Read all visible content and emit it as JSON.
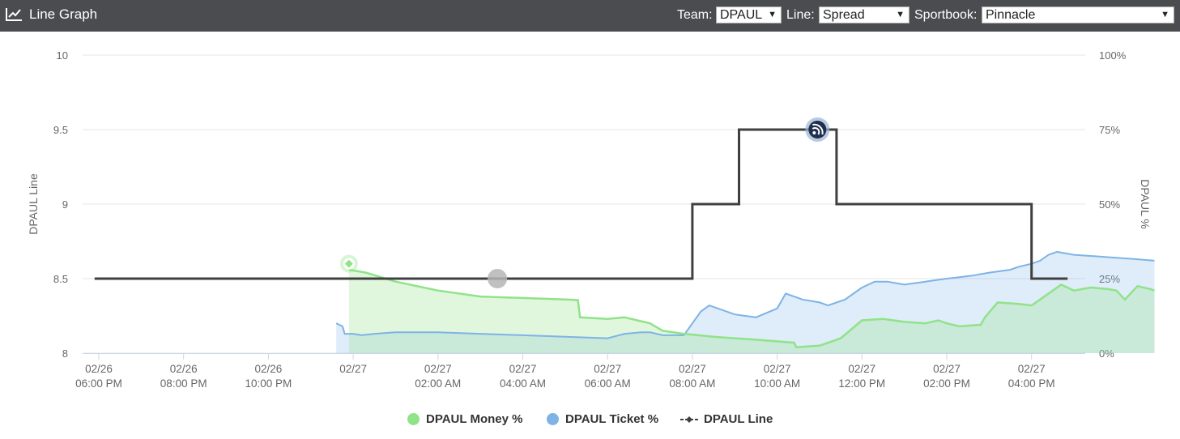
{
  "header": {
    "title": "Line Graph",
    "icon": "line-chart-icon",
    "team_label": "Team:",
    "team_value": "DPAUL",
    "line_label": "Line:",
    "line_value": "Spread",
    "sportsbook_label": "Sportbook:",
    "sportsbook_value": "Pinnacle"
  },
  "legend": {
    "money": "DPAUL Money %",
    "ticket": "DPAUL Ticket %",
    "line": "DPAUL Line"
  },
  "colors": {
    "money": "#90e388",
    "ticket": "#7eb3e6",
    "line": "#404040",
    "header_bg": "#4a4c50"
  },
  "chart_data": {
    "type": "line",
    "title": "",
    "ylabel": "DPAUL Line",
    "y2label": "DPAUL %",
    "ylim": [
      8,
      10
    ],
    "y_ticks": [
      "8",
      "8.5",
      "9",
      "9.5",
      "10"
    ],
    "y2lim": [
      0,
      100
    ],
    "y2_ticks": [
      "0%",
      "25%",
      "50%",
      "75%",
      "100%"
    ],
    "x_ticks": [
      {
        "date": "02/26",
        "time": "06:00 PM",
        "h": 0
      },
      {
        "date": "02/26",
        "time": "08:00 PM",
        "h": 2
      },
      {
        "date": "02/26",
        "time": "10:00 PM",
        "h": 4
      },
      {
        "date": "02/27",
        "time": "",
        "h": 6
      },
      {
        "date": "02/27",
        "time": "02:00 AM",
        "h": 8
      },
      {
        "date": "02/27",
        "time": "04:00 AM",
        "h": 10
      },
      {
        "date": "02/27",
        "time": "06:00 AM",
        "h": 12
      },
      {
        "date": "02/27",
        "time": "08:00 AM",
        "h": 14
      },
      {
        "date": "02/27",
        "time": "10:00 AM",
        "h": 16
      },
      {
        "date": "02/27",
        "time": "12:00 PM",
        "h": 18
      },
      {
        "date": "02/27",
        "time": "02:00 PM",
        "h": 20
      },
      {
        "date": "02/27",
        "time": "04:00 PM",
        "h": 22
      }
    ],
    "series": [
      {
        "name": "DPAUL Line",
        "axis": "left",
        "step": true,
        "points": [
          [
            -0.1,
            8.5
          ],
          [
            14.0,
            8.5
          ],
          [
            14.0,
            9.0
          ],
          [
            15.1,
            9.0
          ],
          [
            15.1,
            9.5
          ],
          [
            17.4,
            9.5
          ],
          [
            17.4,
            9.0
          ],
          [
            22.0,
            9.0
          ],
          [
            22.0,
            8.5
          ],
          [
            22.85,
            8.5
          ]
        ]
      },
      {
        "name": "DPAUL Money %",
        "axis": "right",
        "points": [
          [
            5.9,
            28
          ],
          [
            6.3,
            27
          ],
          [
            7.0,
            24
          ],
          [
            8.0,
            21
          ],
          [
            9.0,
            19
          ],
          [
            10.0,
            18.5
          ],
          [
            11.0,
            18
          ],
          [
            11.3,
            17.8
          ],
          [
            11.35,
            12
          ],
          [
            12.0,
            11.5
          ],
          [
            12.4,
            12
          ],
          [
            13.0,
            10
          ],
          [
            13.3,
            7.5
          ],
          [
            13.8,
            6.5
          ],
          [
            14.5,
            5.5
          ],
          [
            15.5,
            4.5
          ],
          [
            16.4,
            3.5
          ],
          [
            16.45,
            2
          ],
          [
            17.0,
            2.5
          ],
          [
            17.5,
            5
          ],
          [
            18.0,
            11
          ],
          [
            18.5,
            11.5
          ],
          [
            19.0,
            10.5
          ],
          [
            19.5,
            10
          ],
          [
            19.8,
            11
          ],
          [
            20.0,
            10
          ],
          [
            20.3,
            9
          ],
          [
            20.8,
            9.5
          ],
          [
            20.9,
            12
          ],
          [
            21.2,
            17
          ],
          [
            21.7,
            16.5
          ],
          [
            22.0,
            16
          ],
          [
            22.2,
            18
          ],
          [
            22.7,
            23
          ],
          [
            23.0,
            21
          ],
          [
            23.4,
            22
          ],
          [
            23.8,
            21.5
          ],
          [
            24.0,
            21
          ],
          [
            24.2,
            18
          ],
          [
            24.5,
            22.5
          ],
          [
            24.8,
            21.5
          ],
          [
            24.9,
            21
          ]
        ]
      },
      {
        "name": "DPAUL Ticket %",
        "axis": "right",
        "points": [
          [
            5.6,
            10
          ],
          [
            5.75,
            9
          ],
          [
            5.8,
            6.5
          ],
          [
            6.0,
            6.5
          ],
          [
            6.2,
            6
          ],
          [
            6.5,
            6.5
          ],
          [
            7.0,
            7
          ],
          [
            8.0,
            7
          ],
          [
            9.0,
            6.5
          ],
          [
            10.0,
            6
          ],
          [
            11.0,
            5.5
          ],
          [
            12.0,
            5
          ],
          [
            12.4,
            6.5
          ],
          [
            12.8,
            7
          ],
          [
            13.0,
            7
          ],
          [
            13.3,
            6
          ],
          [
            13.8,
            6
          ],
          [
            14.2,
            14
          ],
          [
            14.4,
            16
          ],
          [
            14.6,
            15
          ],
          [
            15.0,
            13
          ],
          [
            15.5,
            12
          ],
          [
            16.0,
            15
          ],
          [
            16.2,
            20
          ],
          [
            16.6,
            18
          ],
          [
            17.0,
            17
          ],
          [
            17.2,
            16
          ],
          [
            17.6,
            18
          ],
          [
            18.0,
            22
          ],
          [
            18.3,
            24
          ],
          [
            18.6,
            24
          ],
          [
            19.0,
            23
          ],
          [
            19.5,
            24
          ],
          [
            20.0,
            25
          ],
          [
            20.3,
            25.5
          ],
          [
            20.6,
            26
          ],
          [
            21.0,
            27
          ],
          [
            21.5,
            28
          ],
          [
            21.7,
            29
          ],
          [
            22.0,
            30
          ],
          [
            22.2,
            31
          ],
          [
            22.4,
            33
          ],
          [
            22.6,
            34
          ],
          [
            23.0,
            33
          ],
          [
            23.5,
            32.5
          ],
          [
            24.0,
            32
          ],
          [
            24.5,
            31.5
          ],
          [
            24.9,
            31
          ]
        ]
      }
    ],
    "markers": [
      {
        "series": "DPAUL Money %",
        "x": 5.9,
        "y": 30,
        "icon": "diamond-icon"
      },
      {
        "series": "DPAUL Line",
        "x": 9.4,
        "y": 8.5,
        "icon": "circle-icon"
      },
      {
        "series": "DPAUL Line",
        "x": 16.95,
        "y": 9.5,
        "icon": "rss-icon"
      }
    ],
    "grid": true,
    "legend_position": "bottom"
  }
}
